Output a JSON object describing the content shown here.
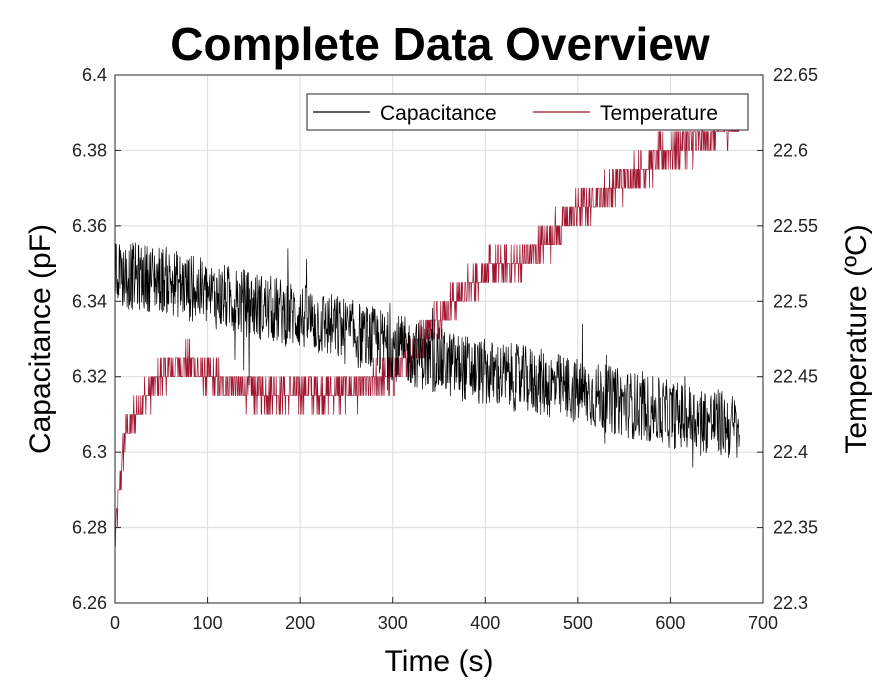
{
  "chart_data": {
    "type": "line",
    "title": "Complete Data Overview",
    "xlabel": "Time (s)",
    "ylabel_left": "Capacitance (pF)",
    "ylabel_right": "Temperature (ºC)",
    "xlim": [
      0,
      700
    ],
    "ylim_left": [
      6.26,
      6.4
    ],
    "ylim_right": [
      22.3,
      22.65
    ],
    "x_ticks": [
      "0",
      "100",
      "200",
      "300",
      "400",
      "500",
      "600",
      "700"
    ],
    "y_left_ticks": [
      "6.26",
      "6.28",
      "6.3",
      "6.32",
      "6.34",
      "6.36",
      "6.38",
      "6.4"
    ],
    "y_right_ticks": [
      "22.3",
      "22.35",
      "22.4",
      "22.45",
      "22.5",
      "22.55",
      "22.6",
      "22.65"
    ],
    "grid": true,
    "legend_position": "top-right",
    "colors": {
      "capacitance": "#000000",
      "temperature": "#a2142f"
    },
    "series": [
      {
        "name": "Capacitance",
        "axis": "left",
        "x": [
          0,
          50,
          100,
          150,
          200,
          250,
          300,
          350,
          400,
          450,
          500,
          550,
          600,
          650,
          675
        ],
        "values": [
          6.347,
          6.346,
          6.342,
          6.339,
          6.336,
          6.332,
          6.328,
          6.324,
          6.321,
          6.319,
          6.316,
          6.313,
          6.31,
          6.308,
          6.306
        ],
        "spread": 0.009
      },
      {
        "name": "Temperature",
        "axis": "right",
        "x": [
          0,
          10,
          25,
          50,
          75,
          100,
          150,
          200,
          250,
          300,
          350,
          400,
          450,
          500,
          550,
          600,
          650,
          675
        ],
        "values": [
          22.34,
          22.41,
          22.43,
          22.45,
          22.46,
          22.45,
          22.44,
          22.44,
          22.44,
          22.45,
          22.49,
          22.52,
          22.53,
          22.56,
          22.58,
          22.6,
          22.61,
          22.62
        ],
        "spread": 0.012
      }
    ]
  }
}
